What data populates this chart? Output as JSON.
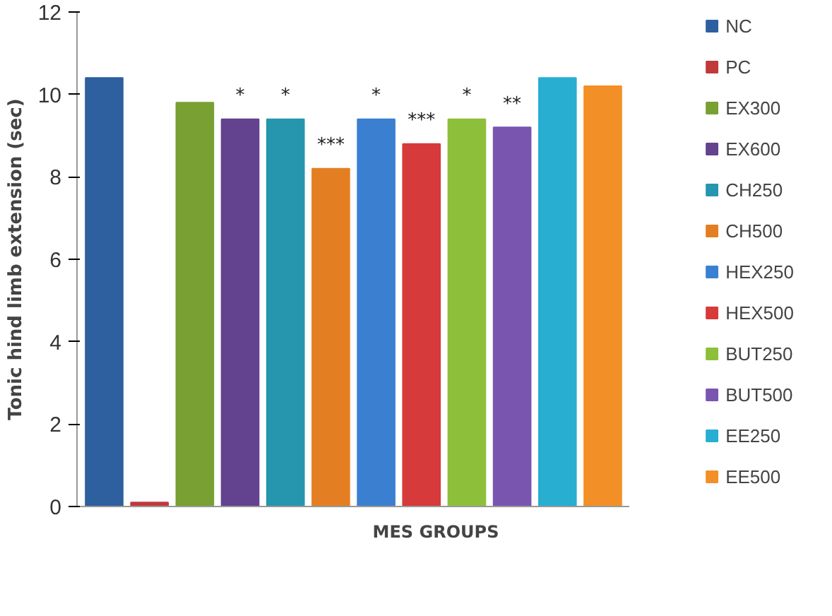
{
  "chart_data": {
    "type": "bar",
    "xlabel": "MES GROUPS",
    "ylabel": "Tonic hind limb extension (sec)",
    "categories": [
      null,
      null,
      null,
      null,
      null,
      null,
      null,
      null,
      null,
      null,
      null,
      null
    ],
    "ylim": [
      0,
      12
    ],
    "yticks": [
      0,
      2,
      4,
      6,
      8,
      10,
      12
    ],
    "grid": false,
    "legend": "right",
    "tick_labels": "y",
    "series": [
      {
        "name": "NC",
        "color": "#2e5f9e",
        "values": [
          10.4,
          null,
          null,
          null,
          null,
          null,
          null,
          null,
          null,
          null,
          null,
          null
        ]
      },
      {
        "name": "PC",
        "color": "#c0393b",
        "values": [
          null,
          0.1,
          null,
          null,
          null,
          null,
          null,
          null,
          null,
          null,
          null,
          null
        ]
      },
      {
        "name": "EX300",
        "color": "#78a033",
        "values": [
          null,
          null,
          9.8,
          null,
          null,
          null,
          null,
          null,
          null,
          null,
          null,
          null
        ]
      },
      {
        "name": "EX600",
        "color": "#63428f",
        "values": [
          null,
          null,
          null,
          9.4,
          null,
          null,
          null,
          null,
          null,
          null,
          null,
          null
        ],
        "value_labels": [
          null,
          null,
          null,
          "*",
          null,
          null,
          null,
          null,
          null,
          null,
          null,
          null
        ]
      },
      {
        "name": "CH250",
        "color": "#2596ad",
        "values": [
          null,
          null,
          null,
          null,
          9.4,
          null,
          null,
          null,
          null,
          null,
          null,
          null
        ],
        "value_labels": [
          null,
          null,
          null,
          null,
          "*",
          null,
          null,
          null,
          null,
          null,
          null,
          null
        ]
      },
      {
        "name": "CH500",
        "color": "#e37f22",
        "values": [
          null,
          null,
          null,
          null,
          null,
          8.2,
          null,
          null,
          null,
          null,
          null,
          null
        ],
        "value_labels": [
          null,
          null,
          null,
          null,
          null,
          "***",
          null,
          null,
          null,
          null,
          null,
          null
        ]
      },
      {
        "name": "HEX250",
        "color": "#3b7fd0",
        "values": [
          null,
          null,
          null,
          null,
          null,
          null,
          9.4,
          null,
          null,
          null,
          null,
          null
        ],
        "value_labels": [
          null,
          null,
          null,
          null,
          null,
          null,
          "*",
          null,
          null,
          null,
          null,
          null
        ]
      },
      {
        "name": "HEX500",
        "color": "#d63a3a",
        "values": [
          null,
          null,
          null,
          null,
          null,
          null,
          null,
          8.8,
          null,
          null,
          null,
          null
        ],
        "value_labels": [
          null,
          null,
          null,
          null,
          null,
          null,
          null,
          "***",
          null,
          null,
          null,
          null
        ]
      },
      {
        "name": "BUT250",
        "color": "#8dbf3a",
        "values": [
          null,
          null,
          null,
          null,
          null,
          null,
          null,
          null,
          9.4,
          null,
          null,
          null
        ],
        "value_labels": [
          null,
          null,
          null,
          null,
          null,
          null,
          null,
          null,
          "*",
          null,
          null,
          null
        ]
      },
      {
        "name": "BUT500",
        "color": "#7a55b0",
        "values": [
          null,
          null,
          null,
          null,
          null,
          null,
          null,
          null,
          null,
          9.2,
          null,
          null
        ],
        "value_labels": [
          null,
          null,
          null,
          null,
          null,
          null,
          null,
          null,
          null,
          "**",
          null,
          null
        ]
      },
      {
        "name": "EE250",
        "color": "#27aed0",
        "values": [
          null,
          null,
          null,
          null,
          null,
          null,
          null,
          null,
          null,
          null,
          10.4,
          null
        ]
      },
      {
        "name": "EE500",
        "color": "#f28f26",
        "values": [
          null,
          null,
          null,
          null,
          null,
          null,
          null,
          null,
          null,
          null,
          null,
          10.2
        ]
      }
    ]
  }
}
